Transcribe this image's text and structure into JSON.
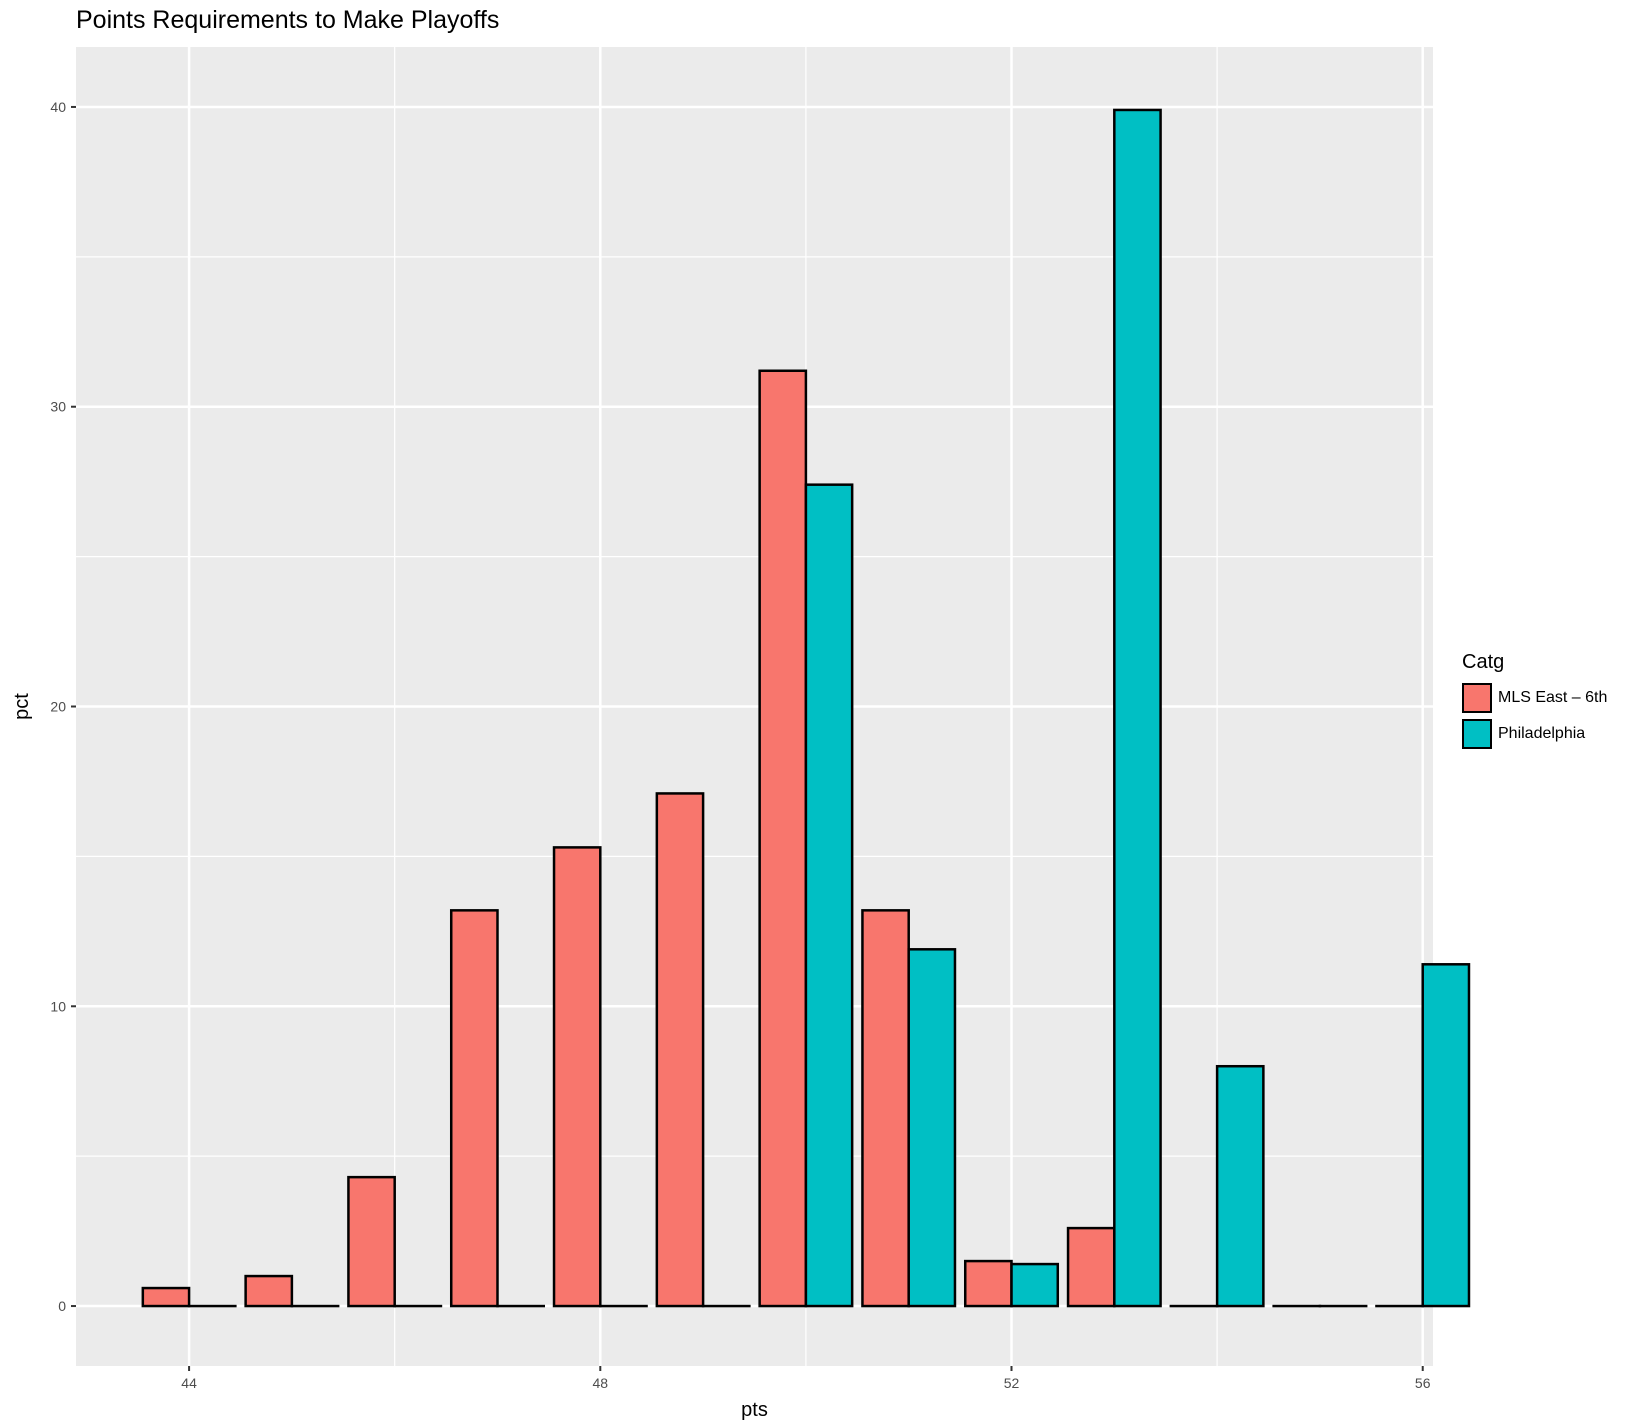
{
  "chart_data": {
    "type": "bar",
    "title": "Points Requirements to Make Playoffs",
    "xlabel": "pts",
    "ylabel": "pct",
    "x": [
      44,
      45,
      46,
      47,
      48,
      49,
      50,
      51,
      52,
      53,
      54,
      55,
      56
    ],
    "xticks": [
      44,
      48,
      52,
      56
    ],
    "yticks": [
      0,
      10,
      20,
      30,
      40
    ],
    "xlim": [
      42.9,
      56.1
    ],
    "ylim": [
      -2.0,
      42.0
    ],
    "grid": true,
    "legend_title": "Catg",
    "legend_position": "right",
    "series": [
      {
        "name": "MLS East – 6th",
        "color": "#F8766D",
        "values": [
          0.6,
          1.0,
          4.3,
          13.2,
          15.3,
          17.1,
          31.2,
          13.2,
          1.5,
          2.6,
          0.0,
          0.0,
          0.0
        ]
      },
      {
        "name": "Philadelphia",
        "color": "#00BFC4",
        "values": [
          0.0,
          0.0,
          0.0,
          0.0,
          0.0,
          0.0,
          27.4,
          11.9,
          1.4,
          39.9,
          8.0,
          0.0,
          11.4
        ]
      }
    ]
  }
}
